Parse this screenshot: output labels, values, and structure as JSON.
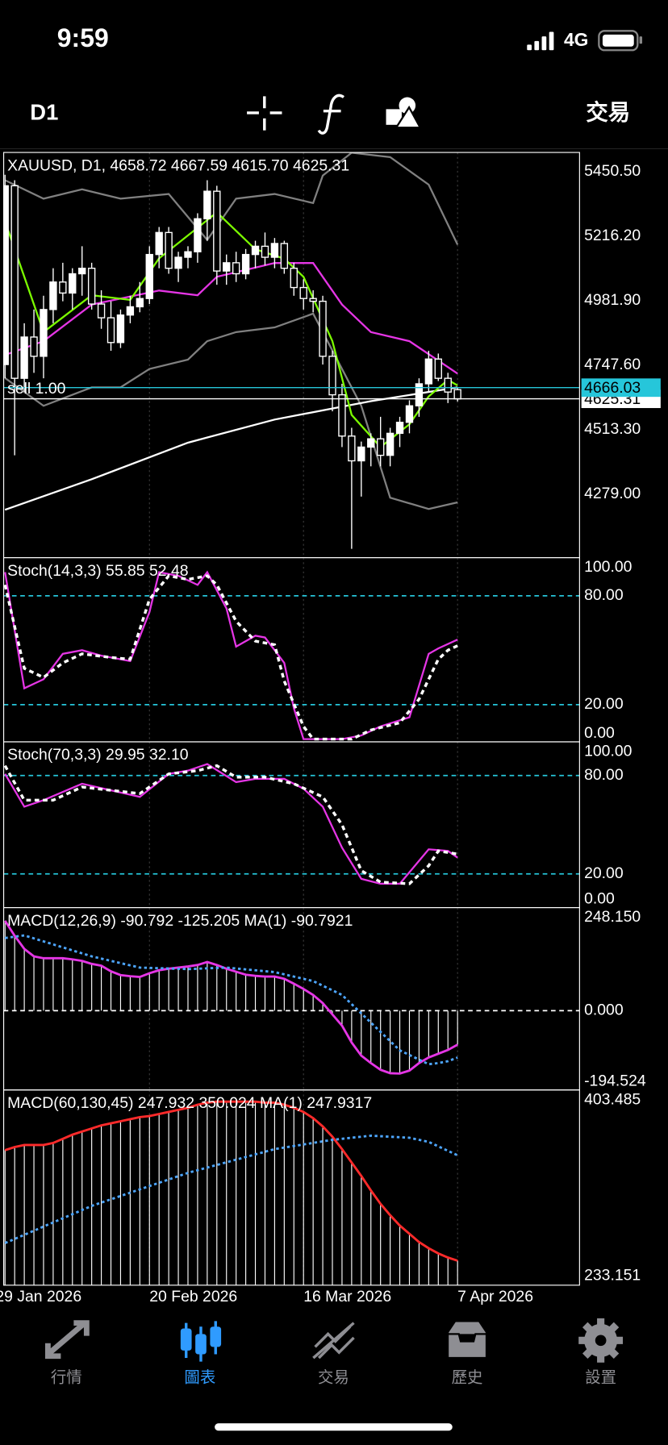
{
  "status_bar": {
    "time": "9:59",
    "network": "4G"
  },
  "toolbar": {
    "period": "D1",
    "trade": "交易"
  },
  "chart_data": [
    {
      "type": "candlestick",
      "title": "XAUUSD, D1, 4658.72 4667.59 4615.70 4625.31",
      "x": [
        1,
        2,
        3,
        4,
        5,
        6,
        7,
        8,
        9,
        10,
        11,
        12,
        13,
        14,
        15,
        16,
        17,
        18,
        19,
        20,
        21,
        22,
        23,
        24,
        25,
        26,
        27,
        28,
        29,
        30,
        31,
        32,
        33,
        34,
        35,
        36,
        37,
        38,
        39,
        40,
        41,
        42,
        43,
        44,
        45,
        46,
        47,
        48
      ],
      "open": [
        4750,
        5400,
        4700,
        4850,
        4780,
        4950,
        5050,
        5010,
        5080,
        5100,
        4970,
        4920,
        4830,
        4930,
        4960,
        4990,
        5150,
        5230,
        5100,
        5140,
        5160,
        5280,
        5380,
        5090,
        5120,
        5080,
        5150,
        5180,
        5140,
        5190,
        5100,
        5030,
        4990,
        4980,
        4780,
        4640,
        4490,
        4400,
        4450,
        4480,
        4420,
        4500,
        4540,
        4600,
        4680,
        4770,
        4700,
        4658.72
      ],
      "high": [
        5440,
        5420,
        4900,
        4950,
        5000,
        5100,
        5120,
        5100,
        5180,
        5120,
        5020,
        4980,
        4950,
        5000,
        5050,
        5180,
        5250,
        5250,
        5160,
        5180,
        5300,
        5420,
        5400,
        5150,
        5160,
        5170,
        5200,
        5230,
        5210,
        5200,
        5120,
        5060,
        5020,
        5000,
        4800,
        4680,
        4520,
        4470,
        4500,
        4560,
        4520,
        4560,
        4620,
        4700,
        4800,
        4790,
        4720,
        4667.59
      ],
      "low": [
        4700,
        4420,
        4650,
        4720,
        4700,
        4900,
        4980,
        4950,
        5000,
        4950,
        4880,
        4800,
        4810,
        4900,
        4940,
        4970,
        5100,
        5080,
        5050,
        5100,
        5120,
        5200,
        5040,
        5040,
        5050,
        5060,
        5100,
        5110,
        5100,
        5080,
        5000,
        4950,
        4940,
        4750,
        4580,
        4450,
        4080,
        4270,
        4380,
        4380,
        4380,
        4450,
        4500,
        4560,
        4650,
        4690,
        4610,
        4615.7
      ],
      "close": [
        5400,
        4700,
        4850,
        4780,
        4950,
        5050,
        5010,
        5080,
        5100,
        4970,
        4920,
        4830,
        4930,
        4960,
        4990,
        5150,
        5230,
        5100,
        5140,
        5160,
        5280,
        5380,
        5090,
        5120,
        5080,
        5150,
        5180,
        5140,
        5190,
        5100,
        5030,
        4990,
        4980,
        4780,
        4640,
        4490,
        4400,
        4450,
        4480,
        4420,
        4500,
        4540,
        4600,
        4680,
        4770,
        4700,
        4650,
        4625.31
      ],
      "up_color": "#ffffff",
      "down_color": "#000000",
      "candle_outline": "#ffffff",
      "series": [
        {
          "color": "#808080",
          "x": [
            1,
            5,
            9,
            13,
            18,
            22,
            25,
            29,
            33,
            34,
            37,
            41,
            45,
            48
          ],
          "values": [
            5420,
            5353,
            5387,
            5353,
            5370,
            5203,
            5353,
            5370,
            5337,
            5437,
            5520,
            5504,
            5404,
            5186
          ]
        },
        {
          "color": "#808080",
          "x": [
            1,
            5,
            10,
            13,
            16,
            20,
            22,
            25,
            29,
            33,
            35,
            38,
            41,
            45,
            48
          ],
          "values": [
            4701,
            4600,
            4667,
            4667,
            4734,
            4768,
            4835,
            4868,
            4885,
            4935,
            4801,
            4600,
            4266,
            4225,
            4249
          ]
        },
        {
          "color": "#ffffff",
          "x": [
            1,
            10,
            20,
            29,
            39,
            48
          ],
          "values": [
            4222,
            4333,
            4466,
            4550,
            4617,
            4667
          ]
        },
        {
          "color": "#e535e5",
          "x": [
            1,
            5,
            10,
            17,
            21,
            23,
            29,
            33,
            36,
            39,
            43,
            48
          ],
          "values": [
            4785,
            4835,
            4968,
            5019,
            5002,
            5069,
            5119,
            5119,
            4968,
            4868,
            4835,
            4717
          ]
        },
        {
          "color": "#7cfc00",
          "x": [
            1,
            5,
            10,
            14,
            17,
            23,
            27,
            30,
            32,
            35,
            37,
            40,
            43,
            45,
            47,
            48
          ],
          "values": [
            5270,
            4868,
            5002,
            4985,
            5136,
            5303,
            5169,
            5135,
            5069,
            4835,
            4567,
            4450,
            4533,
            4634,
            4694,
            4674
          ]
        }
      ],
      "price_lines": [
        {
          "value": 4625.31,
          "color": "#ffffff"
        },
        {
          "value": 4666.03,
          "color": "#26c6da",
          "label": "sell 1.00"
        }
      ],
      "ylim": [
        4048,
        5521
      ],
      "yticks": [
        {
          "value": 5450.5,
          "label": "5450.50"
        },
        {
          "value": 5216.2,
          "label": "5216.20"
        },
        {
          "value": 4981.9,
          "label": "4981.90"
        },
        {
          "value": 4747.6,
          "label": "4747.60"
        },
        {
          "value": 4513.3,
          "label": "4513.30"
        },
        {
          "value": 4279,
          "label": "4279.00"
        }
      ],
      "xlim": [
        0.86,
        60.67
      ],
      "xticks": [
        {
          "value": 0,
          "label": "29 Jan 2026"
        },
        {
          "value": 16,
          "label": "20 Feb 2026"
        },
        {
          "value": 32,
          "label": "16 Mar 2026"
        },
        {
          "value": 48,
          "label": "7 Apr 2026"
        }
      ],
      "grid": true
    },
    {
      "type": "line",
      "title": "Stoch(14,3,3) 55.85 52.48",
      "ylim": [
        0,
        100
      ],
      "yticks": [
        {
          "value": 100,
          "label": "100.00"
        },
        {
          "value": 80,
          "label": "80.00"
        },
        {
          "value": 20,
          "label": "20.00"
        },
        {
          "value": 0,
          "label": "0.00"
        }
      ],
      "levels": [
        80,
        20
      ],
      "level_color": "#26c6da",
      "series": [
        {
          "color": "#e535e5",
          "x": [
            1,
            3,
            5,
            7,
            9,
            11,
            14,
            16,
            17,
            19,
            21,
            22,
            24,
            25,
            27,
            28,
            30,
            31,
            32,
            33,
            36,
            38,
            40,
            43,
            45,
            46,
            48
          ],
          "values": [
            93,
            29,
            34,
            48,
            50,
            47,
            44,
            71,
            93,
            91,
            86,
            93,
            73,
            52,
            58,
            57,
            43,
            18,
            1,
            1,
            1,
            3,
            8,
            13,
            48,
            51,
            55.85
          ]
        },
        {
          "color": "#ffffff",
          "dash": true,
          "x": [
            1,
            3,
            5,
            7,
            9,
            12,
            14,
            16,
            18,
            20,
            22,
            23,
            25,
            27,
            29,
            30,
            32,
            33,
            37,
            39,
            42,
            44,
            46,
            47,
            48
          ],
          "values": [
            86,
            40,
            35,
            43,
            48,
            46,
            45,
            78,
            91,
            89,
            91,
            86,
            66,
            55,
            53,
            33,
            8,
            1,
            1,
            6,
            10,
            23,
            45,
            50,
            52.48
          ]
        }
      ]
    },
    {
      "type": "line",
      "title": "Stoch(70,3,3) 29.95 32.10",
      "ylim": [
        0,
        100
      ],
      "yticks": [
        {
          "value": 100,
          "label": "100.00"
        },
        {
          "value": 80,
          "label": "80.00"
        },
        {
          "value": 20,
          "label": "20.00"
        },
        {
          "value": 0,
          "label": "0.00"
        }
      ],
      "levels": [
        80,
        20
      ],
      "level_color": "#26c6da",
      "series": [
        {
          "color": "#e535e5",
          "x": [
            1,
            3,
            5,
            9,
            12,
            15,
            18,
            20,
            22,
            25,
            27,
            30,
            32,
            34,
            36,
            38,
            40,
            42,
            44,
            45,
            47,
            48
          ],
          "values": [
            81,
            61,
            65,
            75,
            71,
            67,
            81,
            83,
            87,
            76,
            78,
            78,
            72,
            61,
            36,
            17,
            14,
            14,
            28,
            35,
            34,
            29.95
          ]
        },
        {
          "color": "#ffffff",
          "dash": true,
          "x": [
            1,
            3,
            6,
            9,
            12,
            15,
            18,
            21,
            23,
            25,
            28,
            31,
            34,
            36,
            38,
            40,
            43,
            45,
            46,
            48
          ],
          "values": [
            86,
            65,
            65,
            73,
            71,
            69,
            81,
            83,
            86,
            79,
            79,
            75,
            67,
            50,
            22,
            15,
            14,
            25,
            34,
            32.1
          ]
        }
      ]
    },
    {
      "type": "macd",
      "title": "MACD(12,26,9) -90.792 -125.205 MA(1) -90.7921",
      "histogram": [
        240,
        200,
        165,
        145,
        140,
        140,
        140,
        137,
        133,
        125,
        120,
        105,
        95,
        92,
        90,
        100,
        108,
        112,
        115,
        118,
        122,
        130,
        122,
        112,
        104,
        96,
        93,
        91,
        91,
        85,
        72,
        58,
        42,
        20,
        -10,
        -40,
        -85,
        -120,
        -140,
        -158,
        -167,
        -168,
        -160,
        -140,
        -125,
        -115,
        -105,
        -90.792
      ],
      "histogram_color": "#ffffff",
      "line_color": "#e535e5",
      "series": [
        {
          "color": "#4da6ff",
          "dotted": true,
          "x": [
            1,
            3,
            6,
            10,
            15,
            20,
            24,
            29,
            33,
            36,
            39,
            42,
            45,
            46,
            47,
            48
          ],
          "values": [
            194,
            201,
            177,
            145,
            115,
            111,
            115,
            103,
            79,
            42,
            -32,
            -106,
            -143,
            -140,
            -135,
            -125.205
          ]
        }
      ],
      "ylim": [
        -194.524,
        248.15
      ],
      "yticks": [
        {
          "value": 248.15,
          "label": "248.150"
        },
        {
          "value": 0,
          "label": "0.000"
        },
        {
          "value": -194.524,
          "label": "-194.524"
        }
      ],
      "levels": [
        0
      ],
      "level_color": "#ffffff"
    },
    {
      "type": "macd",
      "title": "MACD(60,130,45) 247.932 350.024 MA(1) 247.9317",
      "histogram": [
        355,
        358,
        360,
        360,
        360,
        362,
        366,
        370,
        373,
        376,
        379,
        381,
        383,
        385,
        387,
        388,
        390,
        392,
        394,
        396,
        399,
        401,
        402,
        402,
        402,
        402,
        402,
        401,
        401,
        399,
        396,
        392,
        386,
        378,
        368,
        356,
        343,
        330,
        316,
        303,
        292,
        282,
        274,
        266,
        260,
        255,
        251,
        247.932
      ],
      "histogram_color": "#ffffff",
      "line_color": "#ff2a2a",
      "series": [
        {
          "color": "#4da6ff",
          "dotted": true,
          "x": [
            1,
            10,
            20,
            29,
            35,
            39,
            43,
            45,
            48
          ],
          "values": [
            265,
            301,
            333,
            356,
            365,
            369,
            367,
            363,
            350.024
          ]
        }
      ],
      "ylim": [
        233.151,
        403.485
      ],
      "yticks": [
        {
          "value": 403.485,
          "label": "403.485"
        },
        {
          "value": 233.151,
          "label": "233.151"
        }
      ]
    }
  ],
  "tab_bar": {
    "items": [
      "行情",
      "圖表",
      "交易",
      "歷史",
      "設置"
    ],
    "active": 1,
    "active_color": "#2f9bff",
    "color": "#8e8e93"
  }
}
